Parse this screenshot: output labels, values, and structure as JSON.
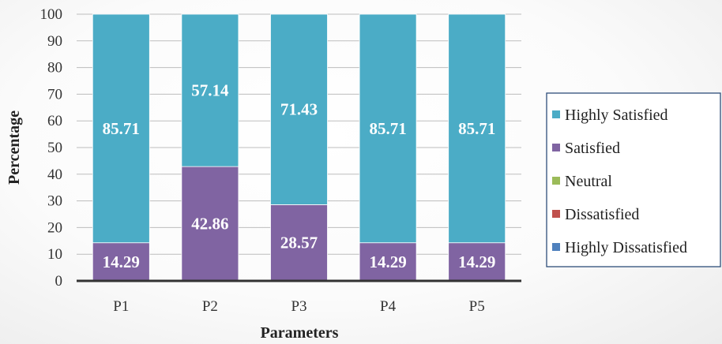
{
  "chart_data": {
    "type": "bar",
    "stacked": true,
    "percent": true,
    "categories": [
      "P1",
      "P2",
      "P3",
      "P4",
      "P5"
    ],
    "series": [
      {
        "name": "Highly Dissatisfied",
        "color": "#4f81bd",
        "values": [
          0,
          0,
          0,
          0,
          0
        ]
      },
      {
        "name": "Dissatisfied",
        "color": "#c0504d",
        "values": [
          0,
          0,
          0,
          0,
          0
        ]
      },
      {
        "name": "Neutral",
        "color": "#9bbb59",
        "values": [
          0,
          0,
          0,
          0,
          0
        ]
      },
      {
        "name": "Satisfied",
        "color": "#8064a2",
        "values": [
          14.29,
          42.86,
          28.57,
          14.29,
          14.29
        ]
      },
      {
        "name": "Highly Satisfied",
        "color": "#4bacc6",
        "values": [
          85.71,
          57.14,
          71.43,
          85.71,
          85.71
        ]
      }
    ],
    "legend_order": [
      "Highly Satisfied",
      "Satisfied",
      "Neutral",
      "Dissatisfied",
      "Highly Dissatisfied"
    ],
    "xlabel": "Parameters",
    "ylabel": "Percentage",
    "ylim": [
      0,
      100
    ],
    "yticks": [
      0,
      10,
      20,
      30,
      40,
      50,
      60,
      70,
      80,
      90,
      100
    ],
    "grid": true,
    "legend_position": "right"
  }
}
